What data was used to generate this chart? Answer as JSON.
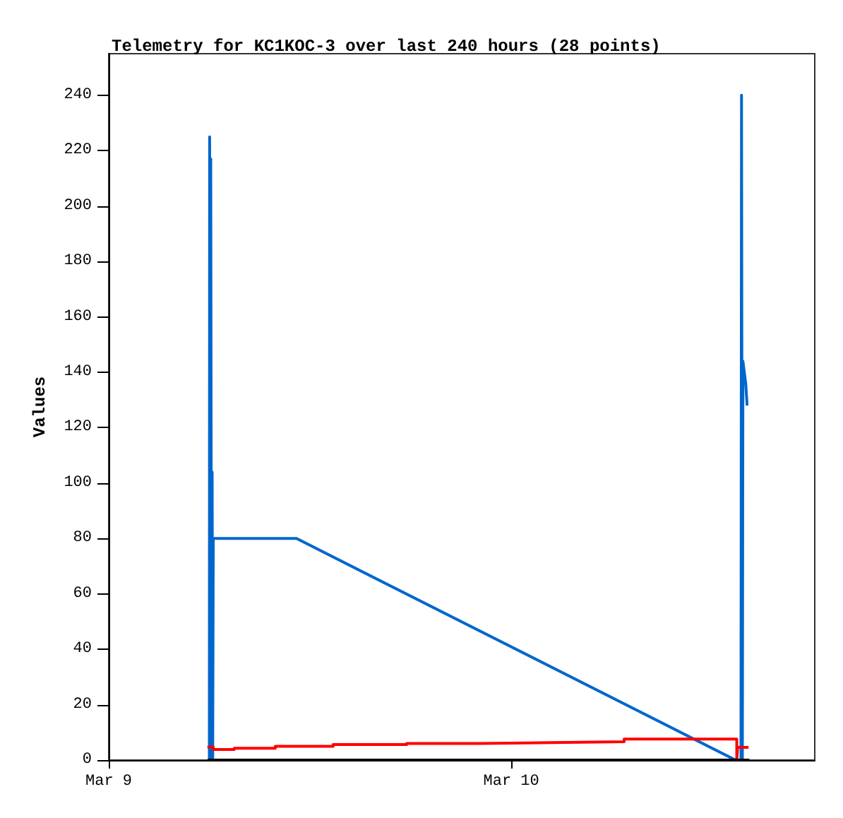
{
  "chart_data": {
    "type": "line",
    "title": "Telemetry for KC1KOC-3 over last 240 hours (28 points)",
    "ylabel": "Values",
    "xlim": [
      "--03-09T00:00",
      "--03-10T18:06"
    ],
    "xticks": [
      {
        "value": "--03-09",
        "label": "Mar 9"
      },
      {
        "value": "--03-10",
        "label": "Mar 10"
      }
    ],
    "ylim": [
      0,
      255
    ],
    "yticks": [
      0,
      20,
      40,
      60,
      80,
      100,
      120,
      140,
      160,
      180,
      200,
      220,
      240
    ],
    "grid": false,
    "marker": "none",
    "line_style": "solid",
    "series": [
      {
        "color": "#0066cc",
        "x": [
          "--03-09T06:00",
          "--03-09T06:01",
          "--03-09T06:04",
          "--03-09T06:05",
          "--03-09T06:08",
          "--03-09T06:10",
          "--03-09T06:12",
          "--03-09T06:14",
          "--03-09T11:12",
          "--03-10T13:23",
          "--03-10T13:42",
          "--03-10T13:44",
          "--03-10T13:47",
          "--03-10T13:49",
          "--03-10T13:54",
          "--03-10T13:59",
          "--03-10T14:04"
        ],
        "values": [
          0,
          225,
          0,
          217,
          0,
          104,
          0,
          80,
          80,
          0,
          0,
          240,
          0,
          144,
          140,
          136,
          128
        ]
      },
      {
        "type": "step",
        "color": "#ff0000",
        "x": [
          "--03-09T05:53",
          "--03-09T06:14",
          "--03-09T07:29",
          "--03-09T09:56",
          "--03-09T13:23",
          "--03-09T17:46",
          "--03-09T22:09",
          "--03-10T02:26",
          "--03-10T06:44",
          "--03-10T13:27",
          "--03-10T13:30",
          "--03-10T14:09"
        ],
        "values": [
          4.7,
          3.8,
          4.3,
          5.0,
          5.6,
          6.0,
          6.3,
          6.6,
          7.6,
          0,
          4.6,
          4.6
        ]
      },
      {
        "color": "#000000",
        "x": [
          "--03-09T05:54",
          "--03-10T14:12"
        ],
        "values": [
          0,
          0
        ]
      }
    ]
  }
}
